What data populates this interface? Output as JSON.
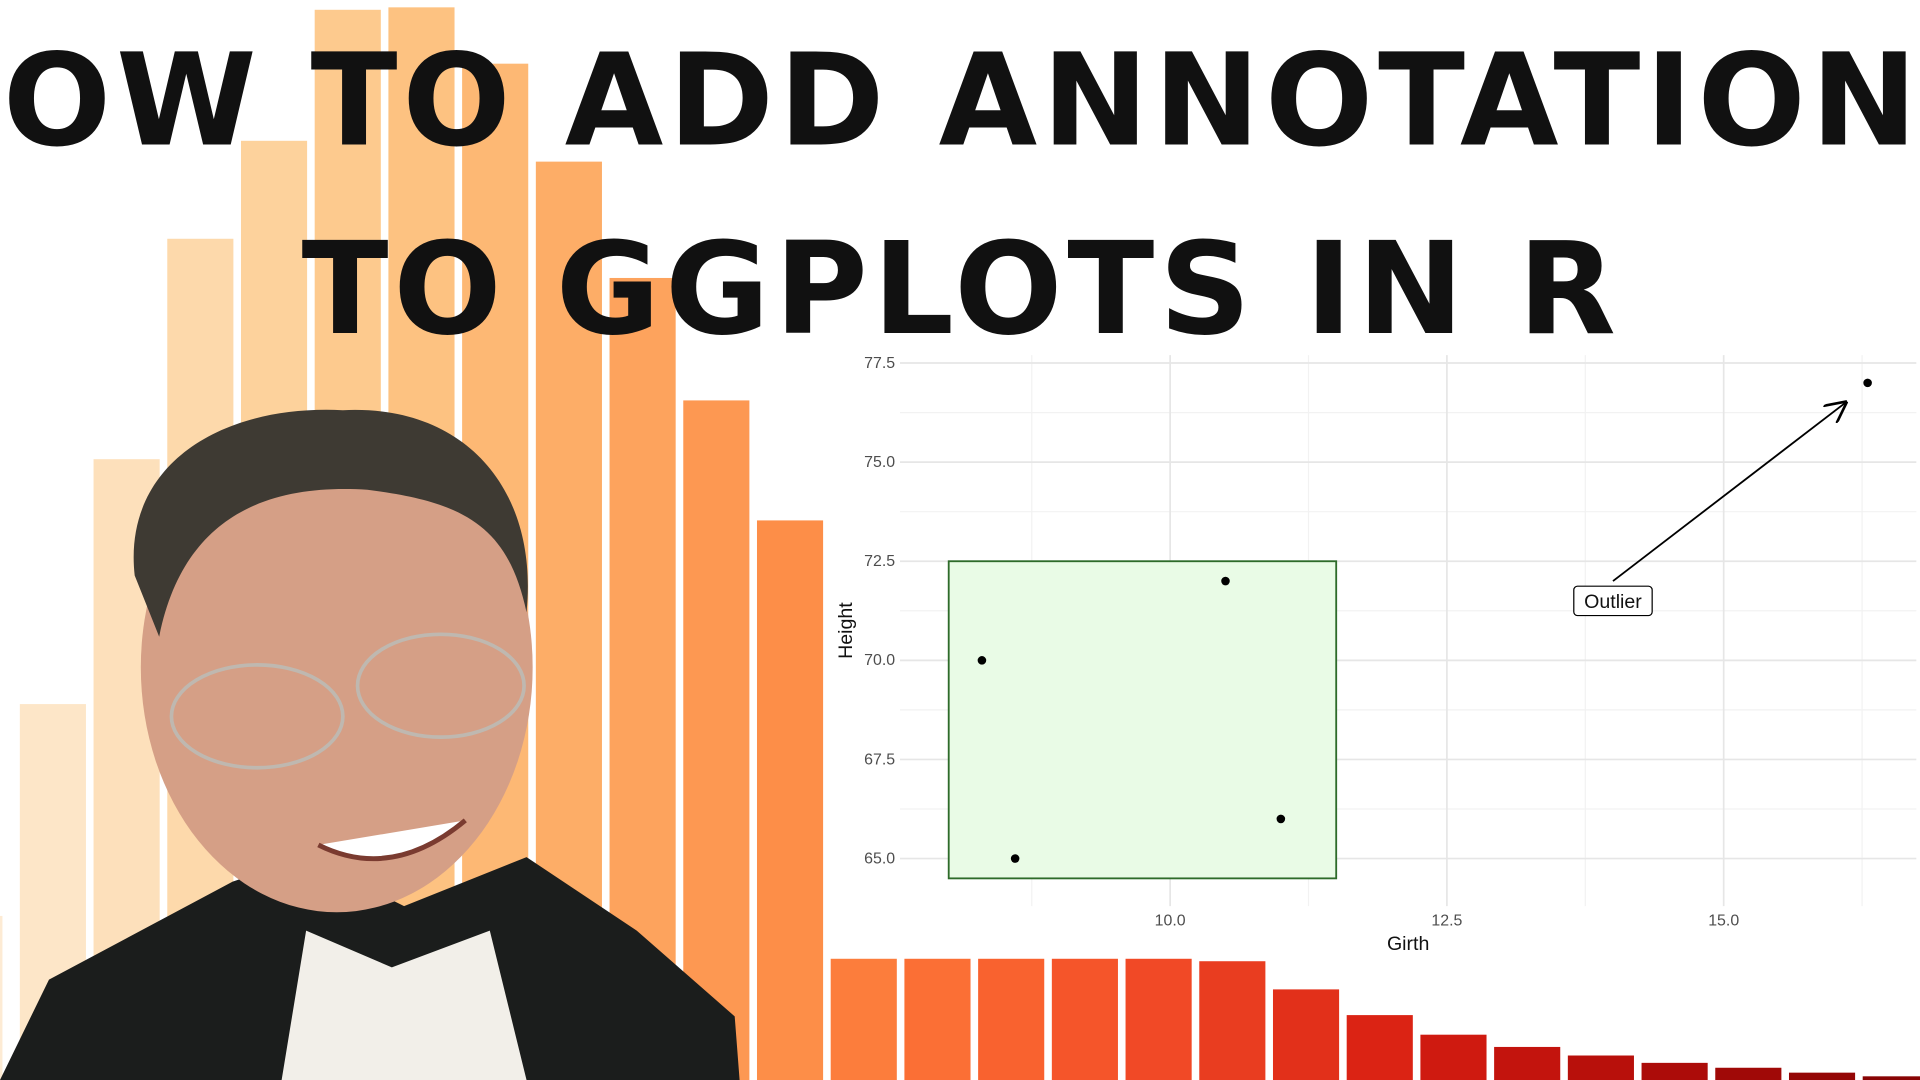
{
  "title": [
    "HOW TO ADD ANNOTATIONS",
    "TO GGPLOTS IN R"
  ],
  "chart_data": {
    "type": "scatter",
    "x_label": "Girth",
    "y_label": "Height",
    "x": [
      8.3,
      8.6,
      10.5,
      11.0,
      16.3
    ],
    "values": [
      70,
      65,
      72,
      66,
      77
    ],
    "color": "#000000",
    "xlim": [
      7.56,
      16.74
    ],
    "ylim": [
      63.8,
      77.7
    ],
    "xticks": [
      {
        "value": 10,
        "label": "10.0"
      },
      12.5,
      {
        "value": 15,
        "label": "15.0"
      }
    ],
    "yticks": [
      {
        "value": 65,
        "label": "65.0"
      },
      67.5,
      {
        "value": 70,
        "label": "70.0"
      },
      72.5,
      {
        "value": 75,
        "label": "75.0"
      },
      77.5
    ],
    "xminor": [
      8.75,
      11.25,
      13.75,
      16.25
    ],
    "yminor": [
      66.25,
      68.75,
      71.25,
      73.75,
      76.25
    ],
    "grid": true,
    "annotations": [
      {
        "type": "rect",
        "xmin": 8.0,
        "xmax": 11.5,
        "ymin": 64.5,
        "ymax": 72.5,
        "fill": "#e9fbe6",
        "color": "#2e6b2a"
      },
      {
        "type": "segment",
        "x": 14.0,
        "y": 72.0,
        "xend": 16.1,
        "yend": 76.5,
        "color": "#000000"
      },
      {
        "type": "label",
        "x": 14.0,
        "y": 71.5,
        "text": "Outlier"
      }
    ]
  }
}
